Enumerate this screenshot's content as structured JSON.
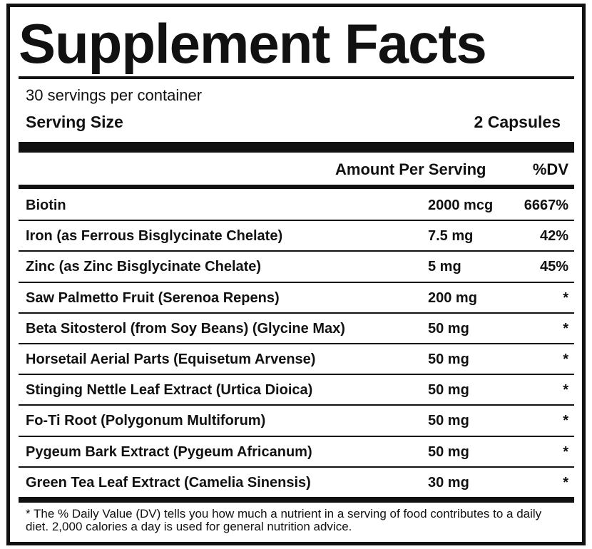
{
  "title": "Supplement Facts",
  "servings_per_container": "30 servings per container",
  "serving_size": {
    "label": "Serving Size",
    "value": "2 Capsules"
  },
  "header": {
    "amount": "Amount Per Serving",
    "dv": "%DV"
  },
  "rows": [
    {
      "name": "Biotin",
      "amount": "2000 mcg",
      "dv": "6667%"
    },
    {
      "name": "Iron (as Ferrous Bisglycinate Chelate)",
      "amount": "7.5 mg",
      "dv": "42%"
    },
    {
      "name": "Zinc (as Zinc Bisglycinate Chelate)",
      "amount": "5 mg",
      "dv": "45%"
    },
    {
      "name": "Saw Palmetto Fruit (Serenoa Repens)",
      "amount": "200 mg",
      "dv": "*"
    },
    {
      "name": "Beta Sitosterol (from Soy Beans) (Glycine Max)",
      "amount": "50 mg",
      "dv": "*"
    },
    {
      "name": "Horsetail Aerial Parts (Equisetum Arvense)",
      "amount": "50 mg",
      "dv": "*"
    },
    {
      "name": "Stinging Nettle Leaf Extract (Urtica Dioica)",
      "amount": "50 mg",
      "dv": "*"
    },
    {
      "name": "Fo-Ti Root (Polygonum Multiforum)",
      "amount": "50 mg",
      "dv": "*"
    },
    {
      "name": "Pygeum Bark Extract (Pygeum Africanum)",
      "amount": "50 mg",
      "dv": "*"
    },
    {
      "name": "Green Tea Leaf Extract (Camelia Sinensis)",
      "amount": "30 mg",
      "dv": "*"
    }
  ],
  "footnote": "* The % Daily Value (DV) tells you how much a nutrient in a serving of food contributes to a daily diet. 2,000 calories a day is used for general nutrition advice."
}
